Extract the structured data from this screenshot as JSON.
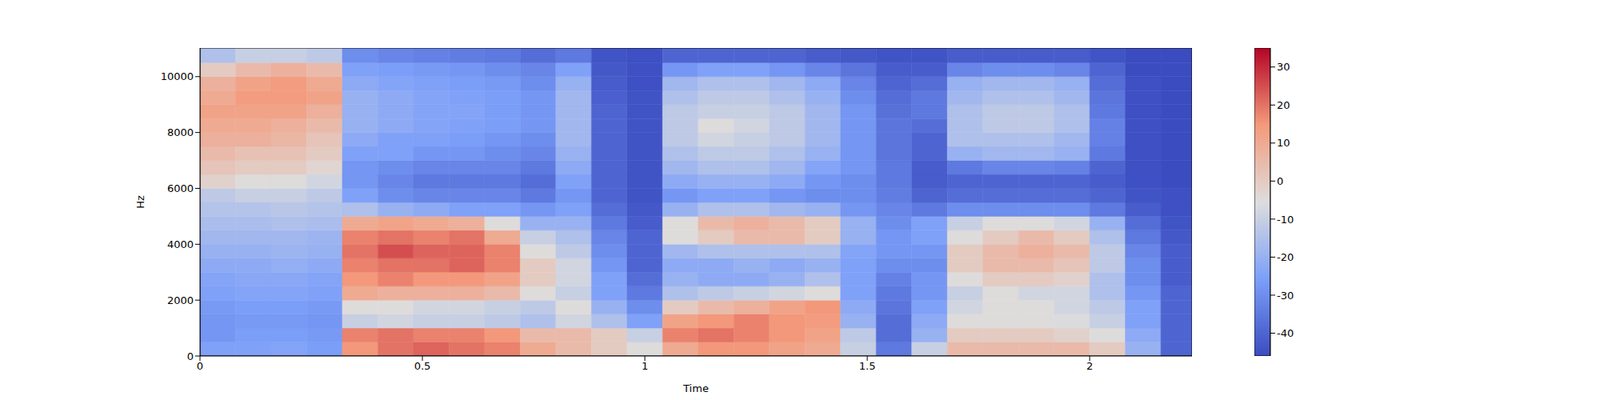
{
  "chart_data": {
    "type": "heatmap",
    "xlabel": "Time",
    "ylabel": "Hz",
    "xlim": [
      0,
      2.23
    ],
    "xticks": [
      0,
      0.5,
      1,
      1.5,
      2
    ],
    "ylim": [
      0,
      11025
    ],
    "yticks": [
      0,
      2000,
      4000,
      6000,
      8000,
      10000
    ],
    "x_edges": [
      0,
      0.08,
      0.16,
      0.24,
      0.32,
      0.4,
      0.48,
      0.56,
      0.64,
      0.72,
      0.8,
      0.88,
      0.96,
      1.04,
      1.12,
      1.2,
      1.28,
      1.36,
      1.44,
      1.52,
      1.6,
      1.68,
      1.76,
      1.84,
      1.92,
      2.0,
      2.08,
      2.16,
      2.24
    ],
    "y_edges": [
      0,
      500,
      1000,
      1500,
      2000,
      2500,
      3000,
      3500,
      4000,
      4500,
      5000,
      5500,
      6000,
      6500,
      7000,
      7500,
      8000,
      8500,
      9000,
      9500,
      10000,
      10500,
      11025
    ],
    "cells": [
      [
        -25,
        -25,
        -24,
        -26,
        15,
        20,
        22,
        20,
        18,
        10,
        5,
        0,
        -5,
        10,
        15,
        15,
        12,
        10,
        -10,
        -35,
        -10,
        5,
        5,
        5,
        5,
        0,
        -20,
        -40
      ],
      [
        -28,
        -26,
        -26,
        -27,
        18,
        20,
        18,
        18,
        15,
        5,
        5,
        0,
        -10,
        18,
        20,
        18,
        15,
        12,
        -12,
        -38,
        -20,
        0,
        0,
        0,
        -2,
        -5,
        -22,
        -40
      ],
      [
        -28,
        -27,
        -27,
        -28,
        -10,
        -8,
        -10,
        -10,
        -12,
        -15,
        -8,
        -15,
        -25,
        12,
        15,
        18,
        15,
        14,
        -20,
        -38,
        -22,
        -5,
        -5,
        -5,
        -6,
        -10,
        -25,
        -40
      ],
      [
        -27,
        -26,
        -26,
        -27,
        -5,
        -5,
        -8,
        -8,
        -10,
        -12,
        -5,
        -20,
        -30,
        0,
        5,
        8,
        12,
        15,
        -22,
        -36,
        -25,
        -8,
        -5,
        -5,
        -8,
        -12,
        -25,
        -40
      ],
      [
        -25,
        -24,
        -24,
        -25,
        10,
        8,
        8,
        8,
        5,
        -5,
        -10,
        -25,
        -35,
        -15,
        -12,
        -10,
        -8,
        -5,
        -25,
        -35,
        -28,
        -10,
        -5,
        -8,
        -8,
        -15,
        -28,
        -40
      ],
      [
        -24,
        -23,
        -23,
        -24,
        15,
        18,
        15,
        15,
        12,
        0,
        -8,
        -25,
        -38,
        -20,
        -22,
        -22,
        -20,
        -15,
        -25,
        -33,
        -28,
        -5,
        0,
        0,
        -2,
        -15,
        -30,
        -42
      ],
      [
        -22,
        -22,
        -21,
        -22,
        18,
        20,
        20,
        22,
        18,
        0,
        -8,
        -28,
        -40,
        -22,
        -22,
        -20,
        -22,
        -20,
        -25,
        -30,
        -30,
        0,
        5,
        5,
        2,
        -12,
        -30,
        -42
      ],
      [
        -20,
        -20,
        -19,
        -20,
        20,
        25,
        22,
        22,
        18,
        -5,
        -12,
        -30,
        -40,
        -18,
        -15,
        -15,
        -15,
        -15,
        -24,
        -28,
        -28,
        0,
        5,
        8,
        5,
        -12,
        -32,
        -42
      ],
      [
        -18,
        -18,
        -18,
        -19,
        18,
        20,
        18,
        20,
        10,
        -10,
        -15,
        -32,
        -40,
        -5,
        0,
        5,
        5,
        0,
        -20,
        -28,
        -25,
        -5,
        0,
        5,
        0,
        -15,
        -35,
        -43
      ],
      [
        -16,
        -16,
        -15,
        -16,
        10,
        12,
        10,
        8,
        -5,
        -20,
        -20,
        -35,
        -42,
        -5,
        5,
        8,
        5,
        0,
        -20,
        -30,
        -25,
        -10,
        -5,
        -5,
        -8,
        -20,
        -38,
        -44
      ],
      [
        -14,
        -14,
        -13,
        -14,
        -15,
        -20,
        -22,
        -25,
        -25,
        -28,
        -25,
        -38,
        -43,
        -20,
        -15,
        -15,
        -18,
        -20,
        -28,
        -32,
        -35,
        -30,
        -30,
        -30,
        -30,
        -35,
        -42,
        -45
      ],
      [
        -12,
        -10,
        -10,
        -12,
        -25,
        -30,
        -32,
        -32,
        -32,
        -35,
        -28,
        -40,
        -44,
        -28,
        -25,
        -25,
        -28,
        -30,
        -30,
        -34,
        -40,
        -38,
        -38,
        -38,
        -38,
        -40,
        -44,
        -45
      ],
      [
        -2,
        -5,
        -5,
        -8,
        -28,
        -32,
        -35,
        -35,
        -35,
        -38,
        -25,
        -40,
        -44,
        -22,
        -20,
        -20,
        -22,
        -28,
        -30,
        -35,
        -42,
        -40,
        -40,
        -40,
        -40,
        -42,
        -45,
        -46
      ],
      [
        2,
        0,
        0,
        -3,
        -28,
        -30,
        -32,
        -32,
        -32,
        -35,
        -22,
        -40,
        -44,
        -18,
        -15,
        -15,
        -18,
        -24,
        -28,
        -35,
        -42,
        -35,
        -32,
        -32,
        -33,
        -40,
        -45,
        -46
      ],
      [
        5,
        3,
        3,
        0,
        -25,
        -25,
        -28,
        -28,
        -30,
        -32,
        -20,
        -40,
        -44,
        -15,
        -12,
        -12,
        -15,
        -20,
        -28,
        -36,
        -40,
        -20,
        -18,
        -18,
        -20,
        -35,
        -45,
        -46
      ],
      [
        8,
        8,
        6,
        2,
        -22,
        -25,
        -25,
        -26,
        -28,
        -30,
        -18,
        -40,
        -44,
        -12,
        -8,
        -10,
        -12,
        -18,
        -28,
        -36,
        -40,
        -15,
        -15,
        -15,
        -18,
        -33,
        -45,
        -46
      ],
      [
        10,
        10,
        8,
        5,
        -20,
        -22,
        -24,
        -25,
        -26,
        -28,
        -18,
        -40,
        -44,
        -12,
        -5,
        -8,
        -12,
        -18,
        -28,
        -36,
        -38,
        -15,
        -12,
        -12,
        -15,
        -33,
        -45,
        -46
      ],
      [
        12,
        12,
        12,
        8,
        -20,
        -22,
        -24,
        -24,
        -26,
        -28,
        -18,
        -40,
        -44,
        -12,
        -10,
        -10,
        -12,
        -18,
        -28,
        -37,
        -35,
        -15,
        -12,
        -12,
        -15,
        -35,
        -45,
        -46
      ],
      [
        10,
        14,
        14,
        12,
        -20,
        -22,
        -24,
        -25,
        -26,
        -28,
        -18,
        -41,
        -44,
        -15,
        -12,
        -12,
        -15,
        -20,
        -30,
        -38,
        -35,
        -18,
        -15,
        -15,
        -18,
        -36,
        -45,
        -46
      ],
      [
        8,
        12,
        14,
        10,
        -22,
        -24,
        -25,
        -26,
        -27,
        -30,
        -20,
        -42,
        -45,
        -18,
        -15,
        -15,
        -18,
        -22,
        -32,
        -40,
        -38,
        -20,
        -18,
        -18,
        -20,
        -38,
        -45,
        -46
      ],
      [
        0,
        5,
        8,
        5,
        -25,
        -26,
        -27,
        -28,
        -30,
        -32,
        -25,
        -43,
        -45,
        -28,
        -25,
        -25,
        -28,
        -32,
        -36,
        -42,
        -42,
        -32,
        -30,
        -30,
        -32,
        -40,
        -46,
        -46
      ],
      [
        -15,
        -10,
        -10,
        -12,
        -30,
        -32,
        -33,
        -34,
        -35,
        -38,
        -35,
        -44,
        -45,
        -40,
        -40,
        -40,
        -40,
        -42,
        -43,
        -44,
        -44,
        -42,
        -42,
        -42,
        -42,
        -44,
        -46,
        -46
      ]
    ],
    "colorbar": {
      "lim": [
        -46,
        35
      ],
      "ticks": [
        -40,
        -30,
        -20,
        -10,
        0,
        10,
        20,
        30
      ]
    }
  }
}
